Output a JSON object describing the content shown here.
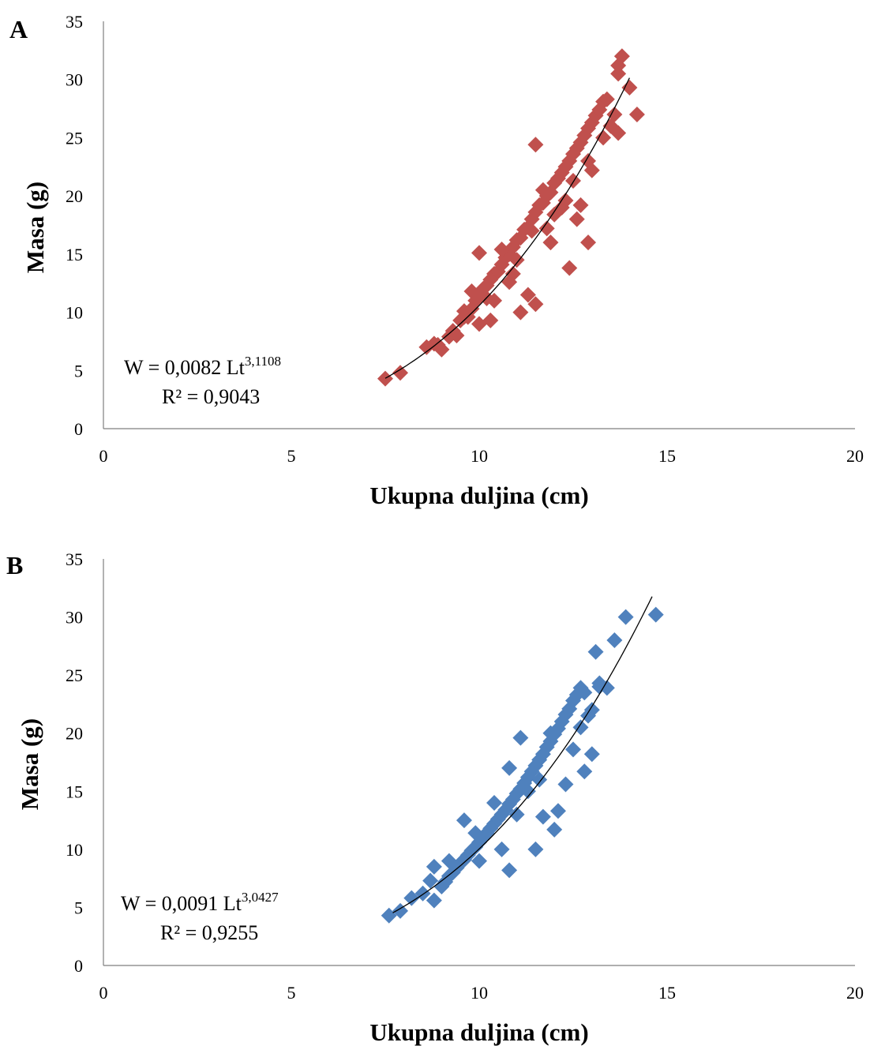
{
  "chart_data": [
    {
      "type": "scatter",
      "panel_label": "A",
      "xlabel": "Ukupna duljina (cm)",
      "ylabel": "Masa (g)",
      "xlim": [
        0,
        20
      ],
      "ylim": [
        0,
        35
      ],
      "x_ticks": [
        "0",
        "5",
        "10",
        "15",
        "20"
      ],
      "y_ticks": [
        "0",
        "5",
        "10",
        "15",
        "20",
        "25",
        "30",
        "35"
      ],
      "grid": false,
      "legend": "none",
      "marker_color": "#c0504d",
      "trendline": {
        "type": "power",
        "a": 0.0082,
        "b": 3.1108,
        "x_range": [
          7.5,
          14.0
        ],
        "color": "#000000"
      },
      "equation": {
        "main": "W = 0,0082  Lt",
        "exponent": "3,1108",
        "r2": "R² = 0,9043"
      },
      "series": [
        {
          "x": [
            7.5,
            7.9,
            8.6,
            8.9,
            9.0,
            8.8,
            9.2,
            9.3,
            9.5,
            9.6,
            9.8,
            9.9,
            10.0,
            10.0,
            10.1,
            10.2,
            10.3,
            10.4,
            10.5,
            10.6,
            10.7,
            10.8,
            10.9,
            11.0,
            11.1,
            11.2,
            11.3,
            11.4,
            11.5,
            11.6,
            11.7,
            11.8,
            11.9,
            12.0,
            12.1,
            12.2,
            12.3,
            12.4,
            12.5,
            12.6,
            12.7,
            12.8,
            12.9,
            13.0,
            13.1,
            13.2,
            13.3,
            13.4,
            13.5,
            13.6,
            13.7,
            13.8,
            13.7,
            14.0,
            14.2,
            13.7,
            10.0,
            11.5,
            12.4,
            12.9,
            11.1,
            11.5,
            11.3,
            10.3,
            9.6,
            10.8,
            11.9,
            12.6,
            12.2,
            11.7,
            10.6,
            9.4,
            9.8,
            10.4,
            11.0,
            11.4,
            12.0,
            12.5,
            13.0,
            12.7,
            11.8,
            10.9,
            10.2,
            9.7,
            13.3,
            12.9,
            12.3
          ],
          "y": [
            4.3,
            4.8,
            7.0,
            7.2,
            6.8,
            7.3,
            7.9,
            8.4,
            9.3,
            10.1,
            10.3,
            11.0,
            11.5,
            9.0,
            12.0,
            12.3,
            12.8,
            13.3,
            13.5,
            14.1,
            14.7,
            15.0,
            15.6,
            16.2,
            16.4,
            17.1,
            17.3,
            18.0,
            18.6,
            19.2,
            19.4,
            20.0,
            20.3,
            21.1,
            21.5,
            22.0,
            22.5,
            23.0,
            23.6,
            24.1,
            24.6,
            25.2,
            25.8,
            26.3,
            26.9,
            27.4,
            28.1,
            28.3,
            26.0,
            27.0,
            30.5,
            32.0,
            31.2,
            29.3,
            27.0,
            25.4,
            15.1,
            24.4,
            13.8,
            16.0,
            10.0,
            10.7,
            11.5,
            9.3,
            9.6,
            12.6,
            16.0,
            18.0,
            19.0,
            20.5,
            15.4,
            8.0,
            11.8,
            11.0,
            14.5,
            17.0,
            18.4,
            21.3,
            22.2,
            19.2,
            17.2,
            13.3,
            11.2,
            9.6,
            25.0,
            23.0,
            19.6
          ]
        }
      ]
    },
    {
      "type": "scatter",
      "panel_label": "B",
      "xlabel": "Ukupna duljina (cm)",
      "ylabel": "Masa (g)",
      "xlim": [
        0,
        20
      ],
      "ylim": [
        0,
        35
      ],
      "x_ticks": [
        "0",
        "5",
        "10",
        "15",
        "20"
      ],
      "y_ticks": [
        "0",
        "5",
        "10",
        "15",
        "20",
        "25",
        "30",
        "35"
      ],
      "grid": false,
      "legend": "none",
      "marker_color": "#4f81bd",
      "trendline": {
        "type": "power",
        "a": 0.0091,
        "b": 3.0427,
        "x_range": [
          7.7,
          14.6
        ],
        "color": "#000000"
      },
      "equation": {
        "main": "W = 0,0091  Lt",
        "exponent": "3,0427",
        "r2": "R² = 0,9255"
      },
      "series": [
        {
          "x": [
            7.6,
            7.9,
            8.2,
            8.5,
            8.7,
            8.8,
            9.0,
            9.1,
            9.2,
            9.3,
            9.4,
            9.5,
            9.6,
            9.7,
            9.8,
            9.9,
            10.0,
            10.1,
            10.2,
            10.3,
            10.4,
            10.5,
            10.6,
            10.7,
            10.8,
            10.9,
            11.0,
            11.1,
            11.2,
            11.3,
            11.4,
            11.5,
            11.6,
            11.7,
            11.8,
            11.9,
            12.0,
            12.1,
            12.2,
            12.3,
            12.4,
            12.5,
            12.6,
            12.7,
            12.8,
            12.9,
            13.0,
            13.1,
            13.2,
            13.4,
            13.6,
            13.9,
            14.7,
            10.8,
            11.1,
            10.8,
            11.5,
            12.0,
            12.8,
            12.1,
            11.7,
            11.3,
            10.4,
            9.6,
            8.8,
            10.0,
            10.6,
            11.9,
            12.5,
            13.0,
            12.3,
            11.0,
            9.9,
            9.2,
            13.2,
            12.7,
            11.6
          ],
          "y": [
            4.3,
            4.7,
            5.8,
            6.2,
            7.3,
            5.6,
            6.8,
            7.2,
            7.7,
            8.0,
            8.4,
            8.8,
            9.1,
            9.5,
            9.9,
            10.2,
            10.6,
            11.0,
            11.4,
            11.8,
            12.2,
            12.6,
            13.0,
            13.4,
            13.9,
            14.3,
            14.8,
            15.2,
            15.7,
            16.2,
            16.7,
            17.2,
            17.7,
            18.2,
            18.8,
            19.3,
            19.9,
            20.4,
            21.0,
            21.6,
            22.1,
            22.8,
            23.3,
            23.9,
            23.5,
            21.5,
            22.0,
            27.0,
            24.3,
            23.9,
            28.0,
            30.0,
            30.2,
            17.0,
            19.6,
            8.2,
            10.0,
            11.7,
            16.7,
            13.3,
            12.8,
            15.0,
            14.0,
            12.5,
            8.5,
            9.0,
            10.0,
            20.0,
            18.6,
            18.2,
            15.6,
            13.0,
            11.4,
            9.0,
            24.0,
            20.5,
            16.0
          ]
        }
      ]
    }
  ]
}
